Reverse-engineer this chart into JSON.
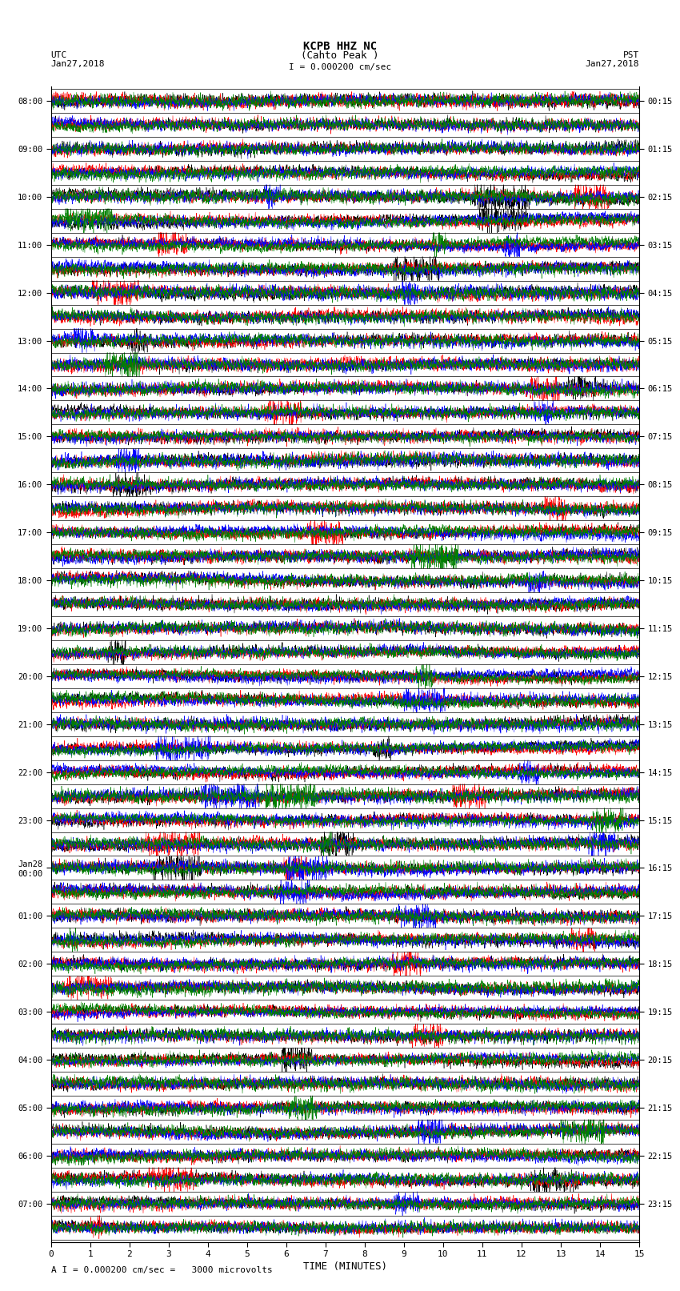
{
  "title_line1": "KCPB HHZ NC",
  "title_line2": "(Cahto Peak )",
  "scale_label": "I = 0.000200 cm/sec",
  "footer_label": "A I = 0.000200 cm/sec =   3000 microvolts",
  "utc_label": "UTC\nJan27,2018",
  "pst_label": "PST\nJan27,2018",
  "xlabel": "TIME (MINUTES)",
  "left_times": [
    "08:00",
    "",
    "09:00",
    "",
    "10:00",
    "",
    "11:00",
    "",
    "12:00",
    "",
    "13:00",
    "",
    "14:00",
    "",
    "15:00",
    "",
    "16:00",
    "",
    "17:00",
    "",
    "18:00",
    "",
    "19:00",
    "",
    "20:00",
    "",
    "21:00",
    "",
    "22:00",
    "",
    "23:00",
    "",
    "Jan28\n00:00",
    "",
    "01:00",
    "",
    "02:00",
    "",
    "03:00",
    "",
    "04:00",
    "",
    "05:00",
    "",
    "06:00",
    "",
    "07:00",
    ""
  ],
  "right_times": [
    "00:15",
    "",
    "01:15",
    "",
    "02:15",
    "",
    "03:15",
    "",
    "04:15",
    "",
    "05:15",
    "",
    "06:15",
    "",
    "07:15",
    "",
    "08:15",
    "",
    "09:15",
    "",
    "10:15",
    "",
    "11:15",
    "",
    "12:15",
    "",
    "13:15",
    "",
    "14:15",
    "",
    "15:15",
    "",
    "16:15",
    "",
    "17:15",
    "",
    "18:15",
    "",
    "19:15",
    "",
    "20:15",
    "",
    "21:15",
    "",
    "22:15",
    "",
    "23:15",
    ""
  ],
  "num_rows": 48,
  "num_cols": 3000,
  "traces_per_row": 4,
  "trace_colors": [
    "black",
    "red",
    "blue",
    "green"
  ],
  "bg_color": "white",
  "amplitude": 0.42,
  "noise_seed": 42,
  "fig_width": 8.5,
  "fig_height": 16.13,
  "dpi": 100,
  "lw": 0.35
}
